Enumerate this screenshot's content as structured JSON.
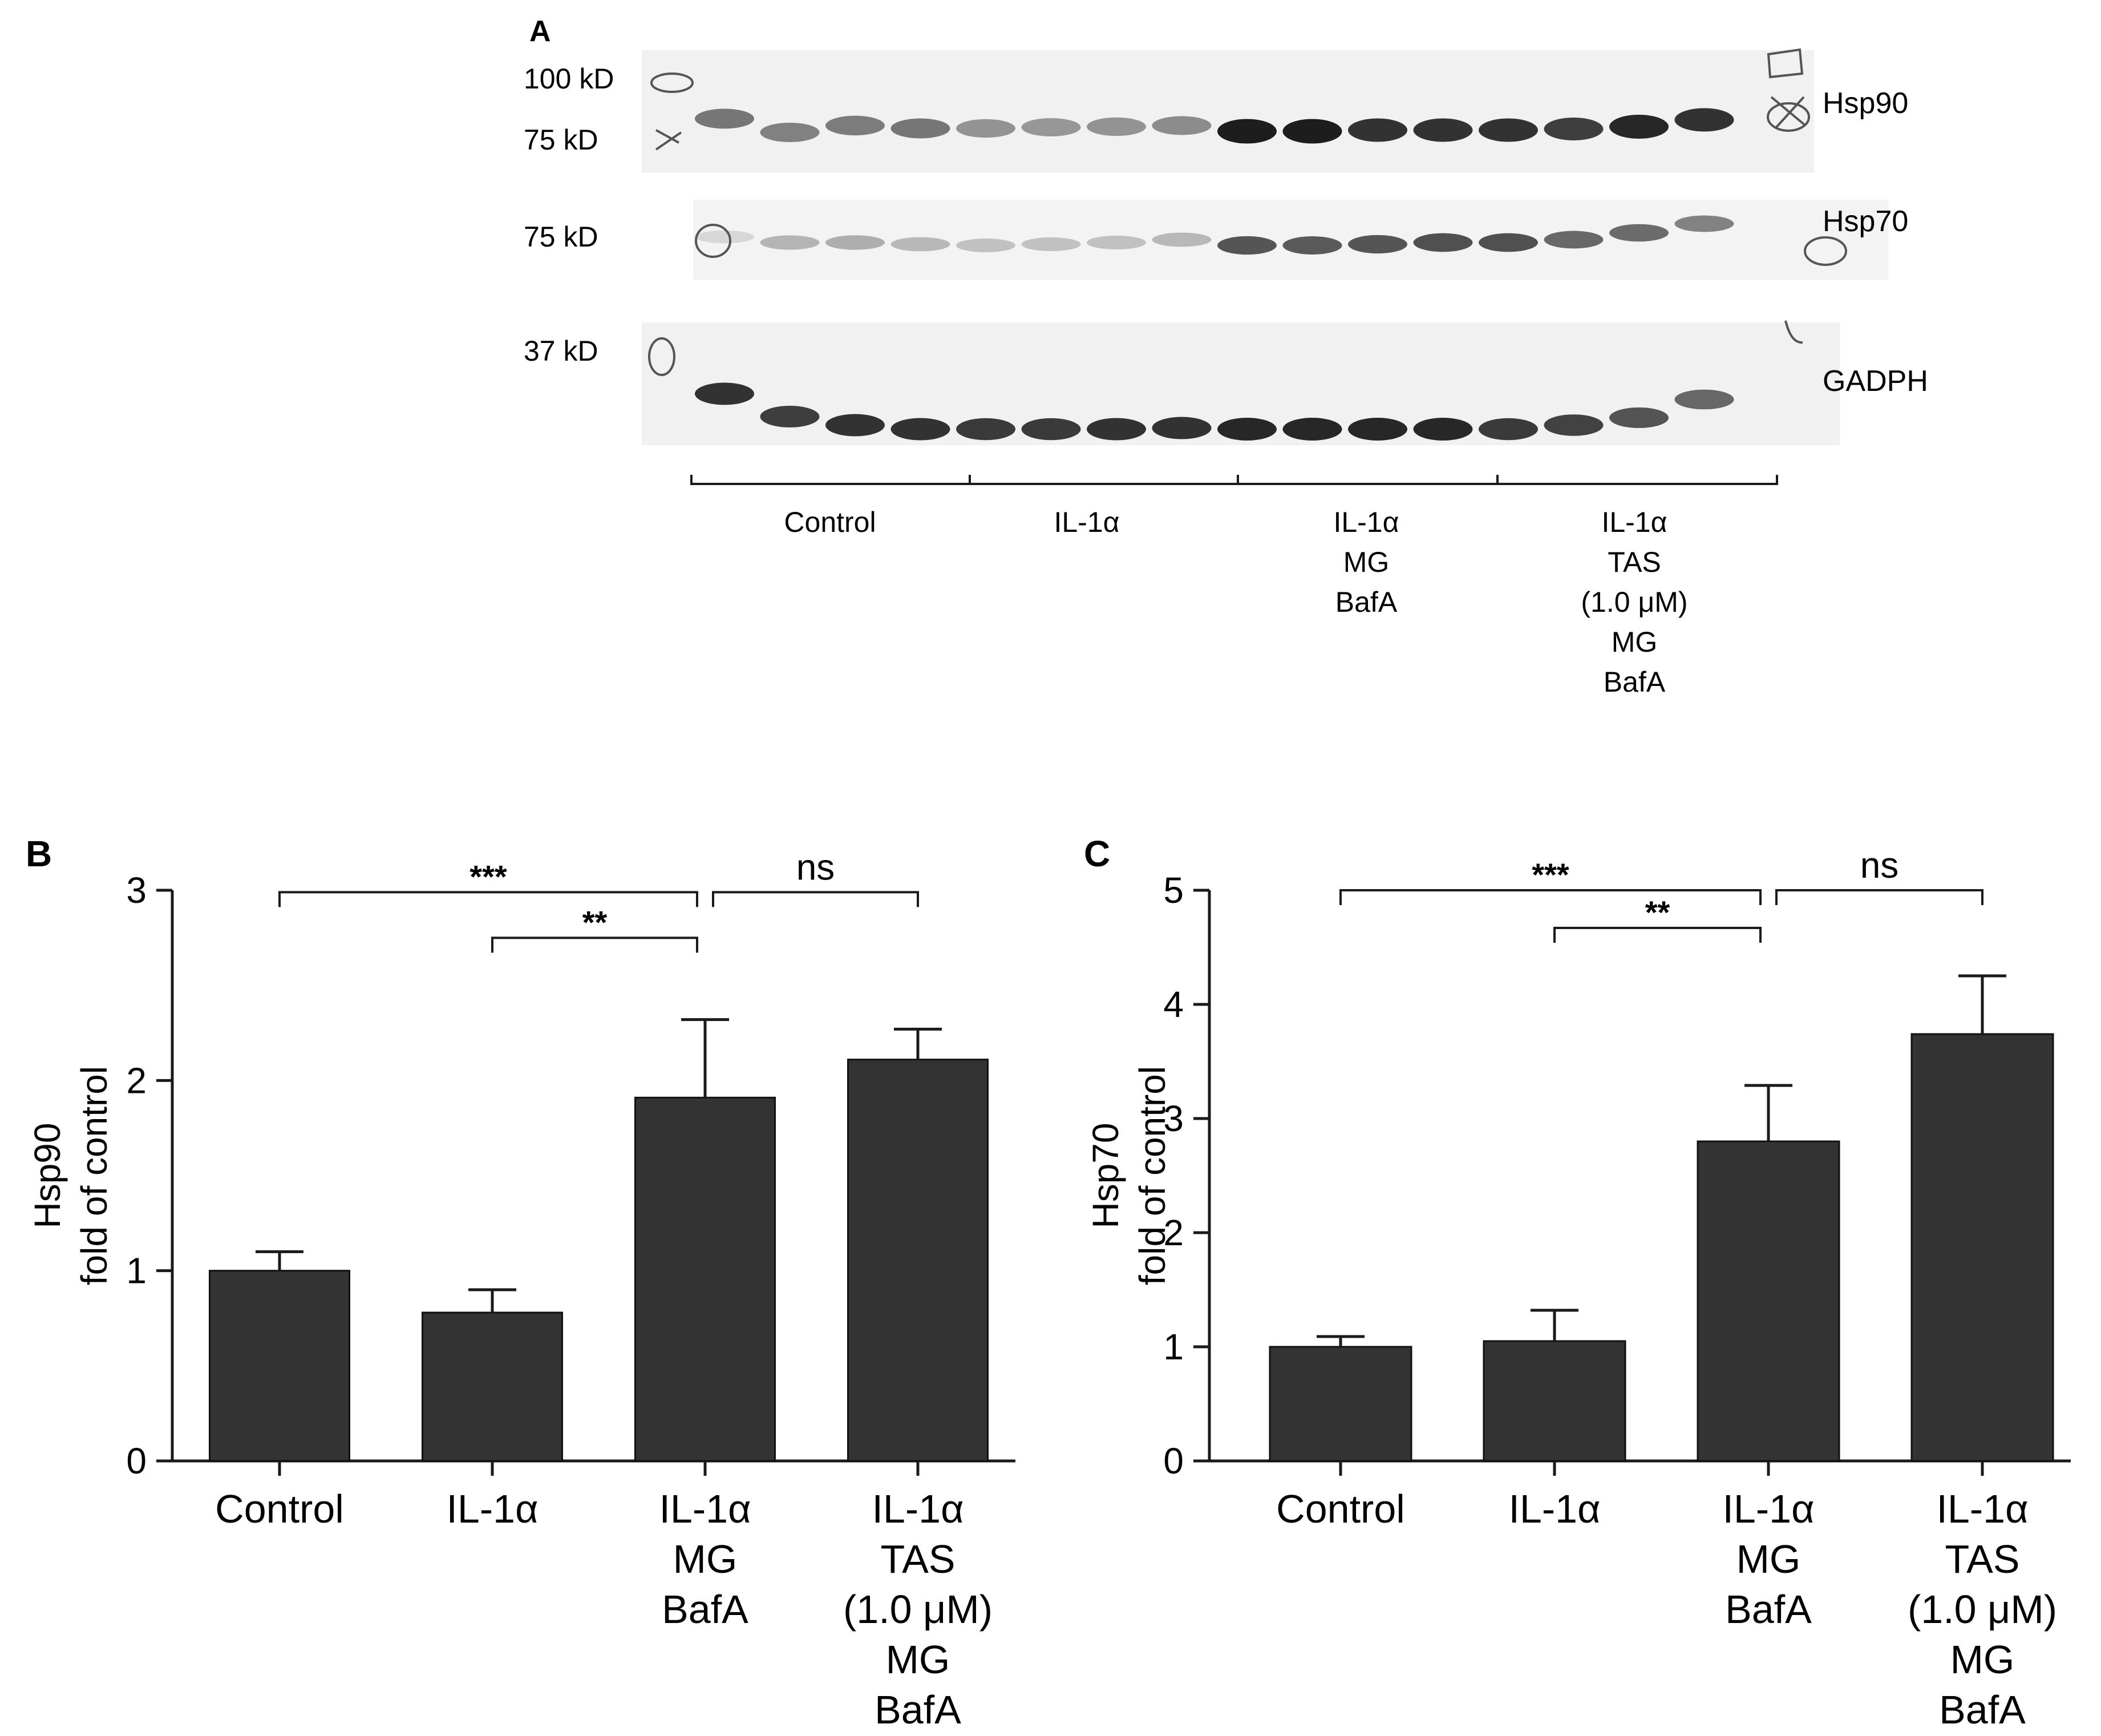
{
  "panels": {
    "A": {
      "letter": "A"
    },
    "B": {
      "letter": "B"
    },
    "C": {
      "letter": "C"
    }
  },
  "blot": {
    "markers": [
      "100 kD",
      "75 kD",
      "75 kD",
      "37 kD"
    ],
    "proteins": [
      "Hsp90",
      "Hsp70",
      "GADPH"
    ],
    "groups": [
      [
        "Control"
      ],
      [
        "IL-1α"
      ],
      [
        "IL-1α",
        "MG",
        "BafA"
      ],
      [
        "IL-1α",
        "TAS",
        "(1.0 μM)",
        "MG",
        "BafA"
      ]
    ],
    "band_intensity": {
      "Hsp90": [
        0.55,
        0.5,
        0.52,
        0.55,
        0.42,
        0.4,
        0.42,
        0.45,
        0.95,
        0.95,
        0.85,
        0.85,
        0.85,
        0.8,
        0.9,
        0.85
      ],
      "Hsp70": [
        0.12,
        0.28,
        0.3,
        0.26,
        0.22,
        0.22,
        0.22,
        0.26,
        0.7,
        0.68,
        0.7,
        0.72,
        0.72,
        0.62,
        0.6,
        0.5
      ],
      "GADPH": [
        0.85,
        0.8,
        0.85,
        0.85,
        0.82,
        0.82,
        0.85,
        0.85,
        0.9,
        0.9,
        0.9,
        0.9,
        0.82,
        0.78,
        0.7,
        0.62
      ]
    }
  },
  "colors": {
    "bar": "#333333",
    "axis": "#1a1a1a",
    "band": "#111111",
    "membrane": "#ececec"
  },
  "chart_data": [
    {
      "panel": "B",
      "type": "bar",
      "categories": [
        [
          "Control"
        ],
        [
          "IL-1α"
        ],
        [
          "IL-1α",
          "MG",
          "BafA"
        ],
        [
          "IL-1α",
          "TAS",
          "(1.0 μM)",
          "MG",
          "BafA"
        ]
      ],
      "values": [
        1.0,
        0.78,
        1.91,
        2.11
      ],
      "errors": [
        0.1,
        0.12,
        0.41,
        0.16
      ],
      "ylabel": [
        "Hsp90",
        "fold of control"
      ],
      "ylim": [
        0,
        3
      ],
      "yticks": [
        "0",
        "1",
        "2",
        "3"
      ],
      "significance": [
        {
          "from": 0,
          "to": 2,
          "label": "***",
          "level": 2.99
        },
        {
          "from": 1,
          "to": 2,
          "label": "**",
          "level": 2.75
        },
        {
          "from": 2,
          "to": 3,
          "label": "ns",
          "level": 2.99
        }
      ]
    },
    {
      "panel": "C",
      "type": "bar",
      "categories": [
        [
          "Control"
        ],
        [
          "IL-1α"
        ],
        [
          "IL-1α",
          "MG",
          "BafA"
        ],
        [
          "IL-1α",
          "TAS",
          "(1.0 μM)",
          "MG",
          "BafA"
        ]
      ],
      "values": [
        1.0,
        1.05,
        2.8,
        3.74
      ],
      "errors": [
        0.09,
        0.27,
        0.49,
        0.51
      ],
      "ylabel": [
        "Hsp70",
        "fold of control"
      ],
      "ylim": [
        0,
        5
      ],
      "yticks": [
        "0",
        "1",
        "2",
        "3",
        "4",
        "5"
      ],
      "significance": [
        {
          "from": 0,
          "to": 2,
          "label": "***",
          "level": 5.0
        },
        {
          "from": 1,
          "to": 2,
          "label": "**",
          "level": 4.67
        },
        {
          "from": 2,
          "to": 3,
          "label": "ns",
          "level": 5.0
        }
      ]
    }
  ]
}
